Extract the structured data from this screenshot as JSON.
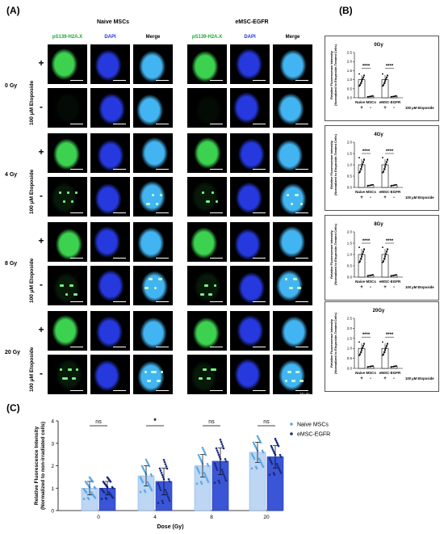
{
  "panel_labels": {
    "a": "(A)",
    "b": "(B)",
    "c": "(C)"
  },
  "panel_a": {
    "group_titles": [
      "Naive MSCs",
      "eMSC-EGFR"
    ],
    "channels": [
      "pS139-H2A.X",
      "DAPI",
      "Merge"
    ],
    "channel_colors": {
      "gamma_h2ax": "#27c93f",
      "dapi": "#3a45ff",
      "merge": "#39b9ff"
    },
    "doses": [
      "0 Gy",
      "4 Gy",
      "8 Gy",
      "20 Gy"
    ],
    "etoposide_label": "100 μM Etoposide",
    "signs": [
      "+",
      "-"
    ],
    "scale_bar": "10 μm"
  },
  "panel_b": {
    "ylabel": "Relative Fluorescence Intensity",
    "ylabel2": "(Normalized to Etoposide-Treated Cells)",
    "xlabels": [
      "Naive MSCs",
      "eMSC-EGFR"
    ],
    "treatment_label": "100 μM Etoposide",
    "signs": [
      "+",
      "-",
      "+",
      "-"
    ],
    "significance": "****",
    "chart_data": [
      {
        "type": "bar",
        "title": "0Gy",
        "categories": [
          "Naive MSCs +",
          "Naive MSCs -",
          "eMSC-EGFR +",
          "eMSC-EGFR -"
        ],
        "values": [
          1.0,
          0.08,
          1.0,
          0.08
        ],
        "ylim": [
          0,
          2.5
        ],
        "yticks": [
          "0.0",
          "0.5",
          "1.0",
          "1.5",
          "2.0",
          "2.5"
        ]
      },
      {
        "type": "bar",
        "title": "4Gy",
        "categories": [
          "Naive MSCs +",
          "Naive MSCs -",
          "eMSC-EGFR +",
          "eMSC-EGFR -"
        ],
        "values": [
          1.0,
          0.1,
          1.0,
          0.1
        ],
        "ylim": [
          0,
          2.0
        ],
        "yticks": [
          "0.0",
          "0.5",
          "1.0",
          "1.5",
          "2.0"
        ]
      },
      {
        "type": "bar",
        "title": "8Gy",
        "categories": [
          "Naive MSCs +",
          "Naive MSCs -",
          "eMSC-EGFR +",
          "eMSC-EGFR -"
        ],
        "values": [
          1.0,
          0.08,
          1.0,
          0.08
        ],
        "ylim": [
          0,
          2.0
        ],
        "yticks": [
          "0.0",
          "0.5",
          "1.0",
          "1.5",
          "2.0"
        ]
      },
      {
        "type": "bar",
        "title": "20Gy",
        "categories": [
          "Naive MSCs +",
          "Naive MSCs -",
          "eMSC-EGFR +",
          "eMSC-EGFR -"
        ],
        "values": [
          1.0,
          0.1,
          1.0,
          0.1
        ],
        "ylim": [
          0,
          2.5
        ],
        "yticks": [
          "0.0",
          "0.5",
          "1.0",
          "1.5",
          "2.0",
          "2.5"
        ]
      }
    ]
  },
  "panel_c": {
    "chart_data": {
      "type": "bar",
      "ylabel": "Relative Fluorescence Intensity",
      "ylabel2": "(Normalized to non-irradiated cells)",
      "xlabel": "Dose (Gy)",
      "categories": [
        "0",
        "4",
        "8",
        "20"
      ],
      "ylim": [
        0,
        4
      ],
      "yticks": [
        "0",
        "1",
        "2",
        "3",
        "4"
      ],
      "significance": [
        "ns",
        "*",
        "ns",
        "ns"
      ],
      "series": [
        {
          "name": "Naive MSCs",
          "values": [
            1.0,
            1.55,
            2.0,
            2.6
          ],
          "errors": [
            0.3,
            0.45,
            0.5,
            0.45
          ],
          "color": "#bcd6f3",
          "dot": "#5aa8e6"
        },
        {
          "name": "eMSC-EGFR",
          "values": [
            1.0,
            1.3,
            2.2,
            2.4
          ],
          "errors": [
            0.3,
            0.6,
            0.6,
            0.5
          ],
          "color": "#3a56d6",
          "dot": "#1a2a80"
        }
      ]
    }
  }
}
